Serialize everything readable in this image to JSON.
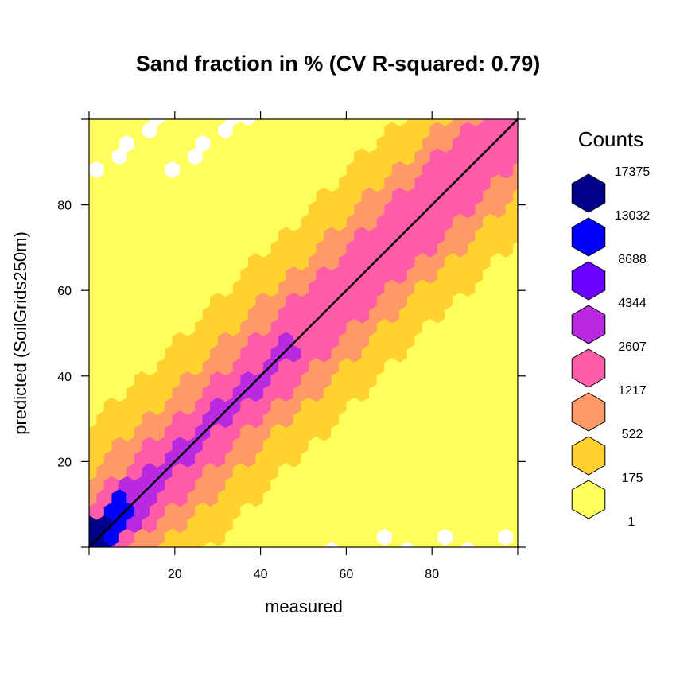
{
  "chart_data": {
    "type": "hexbin",
    "title": "Sand fraction in %  (CV R-squared: 0.79)",
    "xlabel": "measured",
    "ylabel": "predicted (SoilGrids250m)",
    "xlim": [
      0,
      100
    ],
    "ylim": [
      0,
      100
    ],
    "xticks": [
      20,
      40,
      60,
      80
    ],
    "yticks": [
      20,
      40,
      60,
      80
    ],
    "reference_line": {
      "slope": 1,
      "intercept": 0
    },
    "legend": {
      "title": "Counts",
      "breaks": [
        17375,
        13032,
        8688,
        4344,
        2607,
        1217,
        522,
        175,
        1
      ],
      "colors": [
        "#00008B",
        "#0000FF",
        "#6A00FF",
        "#B829E0",
        "#FF5CA8",
        "#FF9A66",
        "#FFD230",
        "#FFFF5C"
      ]
    },
    "density_model": {
      "description": "counts concentrated along 1:1 line, highest at low sand fractions",
      "band_by_predicted_minus_measured": [
        {
          "max_abs_deviation": 4,
          "level": "2607-4344"
        },
        {
          "max_abs_deviation": 10,
          "level": "1217-2607"
        },
        {
          "max_abs_deviation": 17,
          "level": "522-1217"
        },
        {
          "max_abs_deviation": 28,
          "level": "175-522"
        },
        {
          "max_abs_deviation": 100,
          "level": "1-175"
        }
      ],
      "core_low_end": [
        {
          "x_max": 4,
          "level": "13032-17375"
        },
        {
          "x_max": 9,
          "level": "8688-13032"
        },
        {
          "x_max": 16,
          "level": "4344-8688"
        }
      ]
    }
  }
}
